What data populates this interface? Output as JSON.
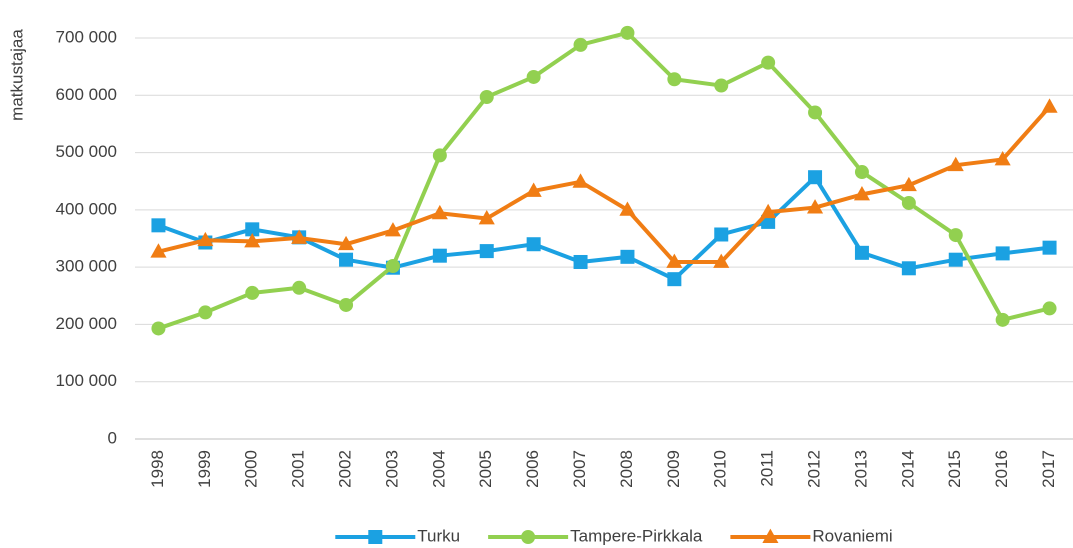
{
  "chart_data": {
    "type": "line",
    "ylabel": "matkustajaa",
    "categories": [
      "1998",
      "1999",
      "2000",
      "2001",
      "2002",
      "2003",
      "2004",
      "2005",
      "2006",
      "2007",
      "2008",
      "2009",
      "2010",
      "2011",
      "2012",
      "2013",
      "2014",
      "2015",
      "2016",
      "2017"
    ],
    "series": [
      {
        "name": "Turku",
        "color": "#1ba1e2",
        "marker": "square",
        "values": [
          373000,
          343000,
          366000,
          352000,
          313000,
          299000,
          320000,
          328000,
          340000,
          309000,
          318000,
          279000,
          357000,
          379000,
          457000,
          325000,
          298000,
          313000,
          324000,
          334000
        ]
      },
      {
        "name": "Tampere-Pirkkala",
        "color": "#92d050",
        "marker": "circle",
        "values": [
          193000,
          221000,
          255000,
          264000,
          234000,
          302000,
          495000,
          597000,
          632000,
          688000,
          709000,
          628000,
          617000,
          657000,
          570000,
          466000,
          412000,
          356000,
          208000,
          228000
        ]
      },
      {
        "name": "Rovaniemi",
        "color": "#f07d14",
        "marker": "triangle",
        "values": [
          327000,
          347000,
          345000,
          351000,
          340000,
          364000,
          394000,
          385000,
          433000,
          449000,
          400000,
          309000,
          309000,
          396000,
          404000,
          427000,
          443000,
          478000,
          488000,
          580000
        ]
      }
    ],
    "ylim": [
      0,
      700000
    ],
    "yticks": [
      0,
      {
        "value": 100000,
        "label": "100 000"
      },
      {
        "value": 200000,
        "label": "200 000"
      },
      {
        "value": 300000,
        "label": "300 000"
      },
      {
        "value": 400000,
        "label": "400 000"
      },
      {
        "value": 500000,
        "label": "500 000"
      },
      {
        "value": 600000,
        "label": "600 000"
      },
      {
        "value": 700000,
        "label": "700 000"
      }
    ],
    "grid": true,
    "legend": "bottom"
  }
}
